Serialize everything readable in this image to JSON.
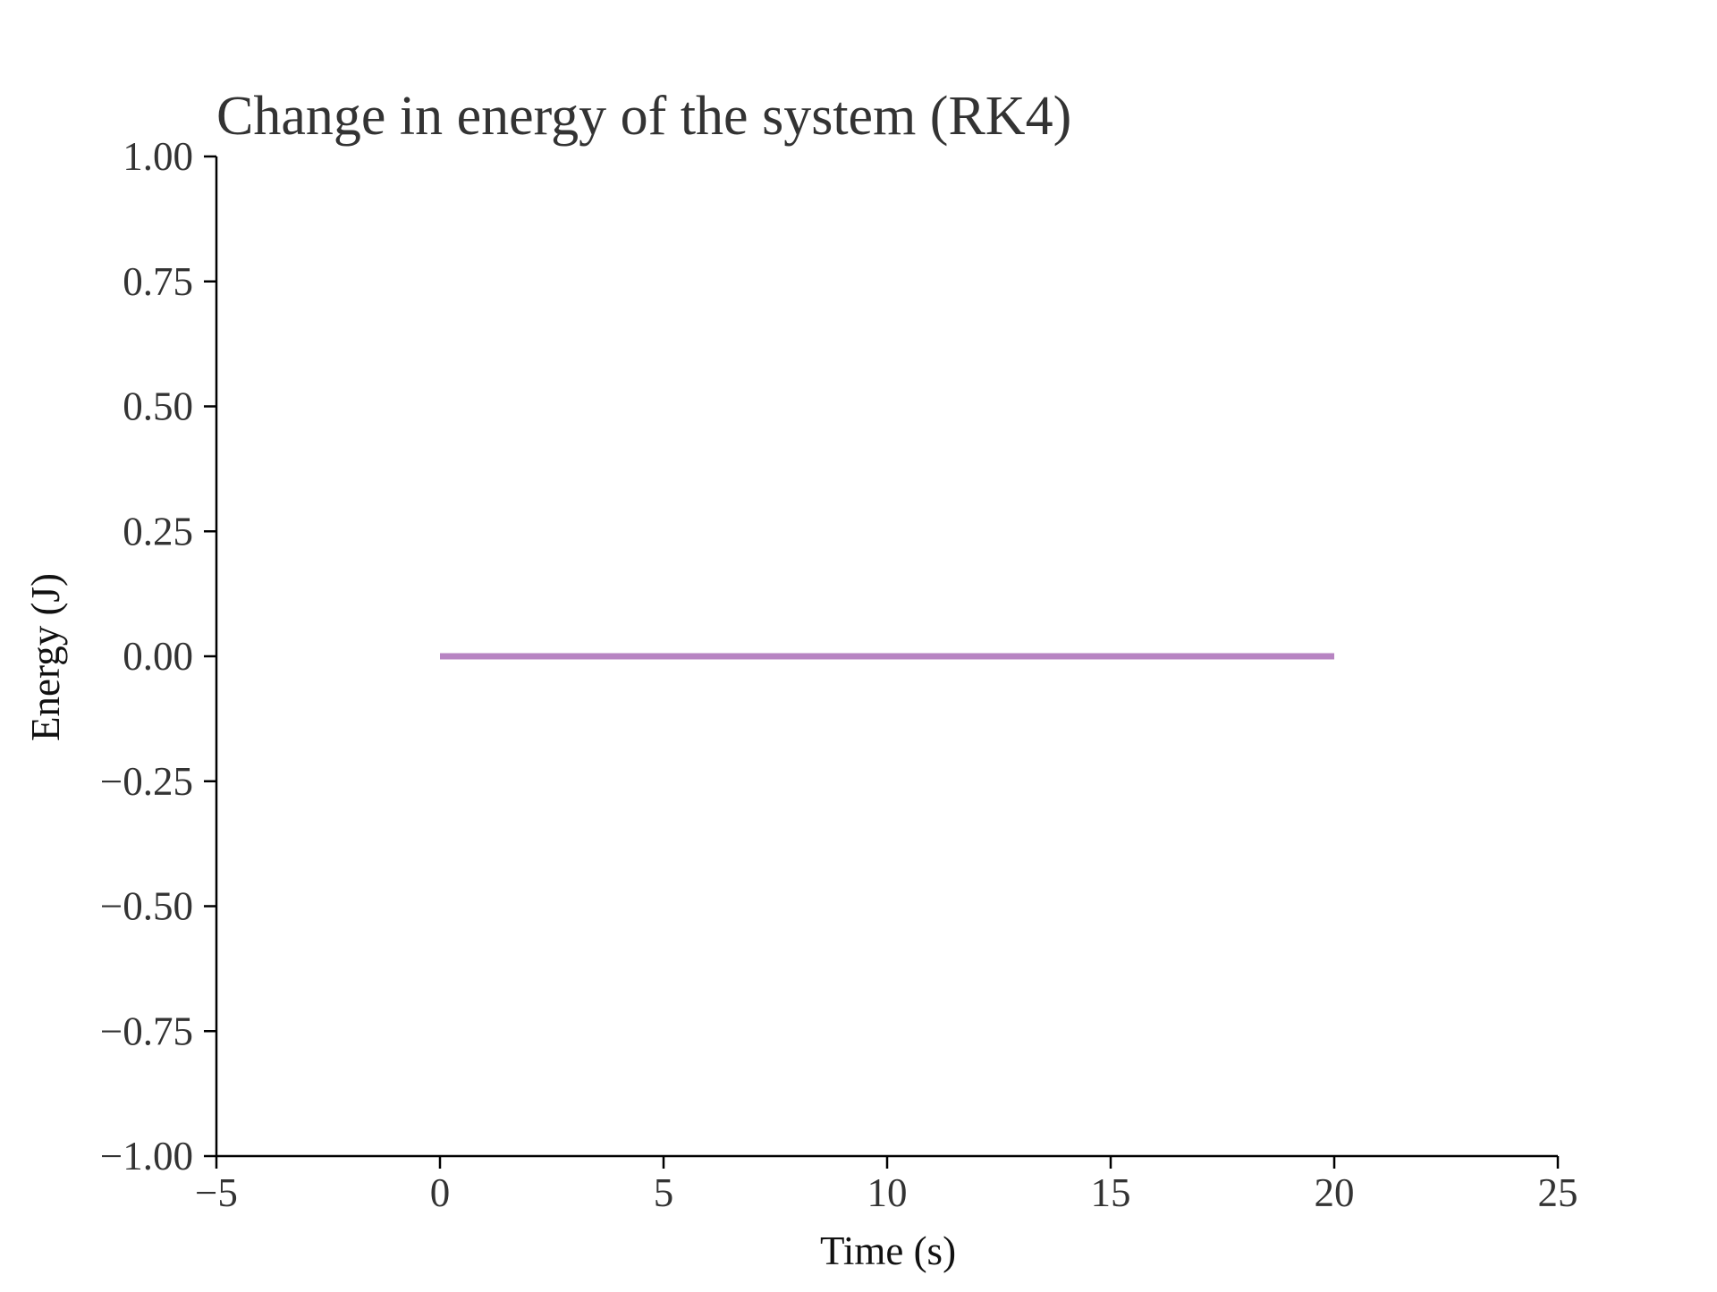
{
  "chart_data": {
    "type": "line",
    "title": "Change in energy of the system (RK4)",
    "xlabel": "Time (s)",
    "ylabel": "Energy (J)",
    "xlim": [
      -5,
      25
    ],
    "ylim": [
      -1.0,
      1.0
    ],
    "x_ticks": [
      -5,
      0,
      5,
      10,
      15,
      20,
      25
    ],
    "x_tick_labels": [
      "−5",
      "0",
      "5",
      "10",
      "15",
      "20",
      "25"
    ],
    "y_ticks": [
      -1.0,
      -0.75,
      -0.5,
      -0.25,
      0.0,
      0.25,
      0.5,
      0.75,
      1.0
    ],
    "y_tick_labels": [
      "−1.00",
      "−0.75",
      "−0.50",
      "−0.25",
      "0.00",
      "0.25",
      "0.50",
      "0.75",
      "1.00"
    ],
    "grid": false,
    "legend": "none",
    "series": [
      {
        "color": "#b784c2",
        "x": [
          0,
          20
        ],
        "y": [
          0.0,
          0.0
        ]
      }
    ]
  }
}
